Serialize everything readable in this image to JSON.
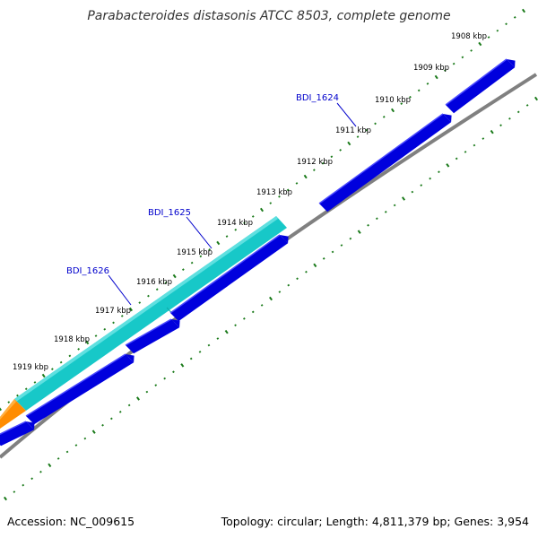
{
  "title": "Parabacteroides distasonis ATCC 8503, complete genome",
  "footer": {
    "accession": "Accession: NC_009615",
    "summary": "Topology: circular; Length: 4,811,379 bp; Genes: 3,954"
  },
  "ruler": {
    "unit": "kbp",
    "tick_labels": [
      "1908 kbp",
      "1909 kbp",
      "1910 kbp",
      "1911 kbp",
      "1912 kbp",
      "1913 kbp",
      "1914 kbp",
      "1915 kbp",
      "1916 kbp",
      "1917 kbp",
      "1918 kbp",
      "1919 kbp"
    ]
  },
  "gene_labels": [
    "BDI_1624",
    "BDI_1625",
    "BDI_1626"
  ],
  "colors": {
    "backbone": "#808080",
    "tick": "#1a7a1a",
    "cds_forward": "#0000dd",
    "cds_reverse": "#17c8c8",
    "other_feature": "#ff8c00",
    "gene_label": "#0000cc"
  }
}
